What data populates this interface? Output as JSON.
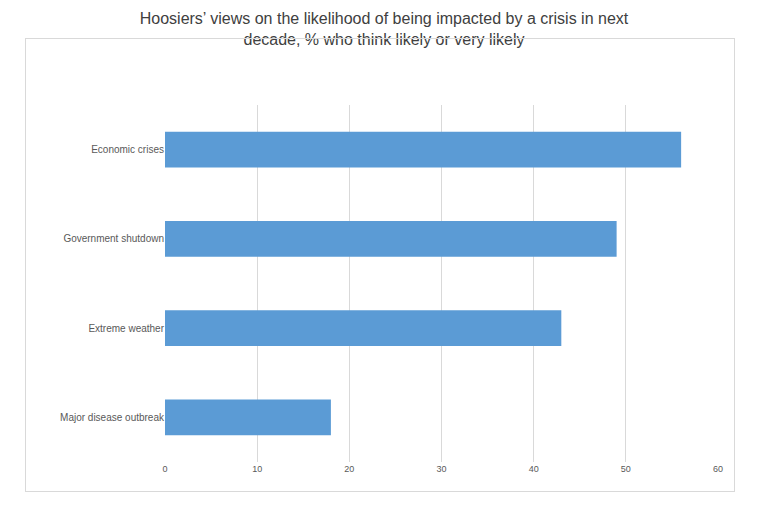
{
  "chart_data": {
    "type": "bar",
    "orientation": "horizontal",
    "title": "Hoosiers’ views on the likelihood of being impacted by a crisis in next decade, % who think likely or very likely",
    "categories": [
      "Economic crises",
      "Government shutdown",
      "Extreme weather",
      "Major disease outbreak"
    ],
    "values": [
      56,
      49,
      43,
      18
    ],
    "color": "#5b9bd5",
    "xlim": [
      0,
      60
    ],
    "xticks": [
      0,
      10,
      20,
      30,
      40,
      50,
      60
    ],
    "grid": true
  }
}
